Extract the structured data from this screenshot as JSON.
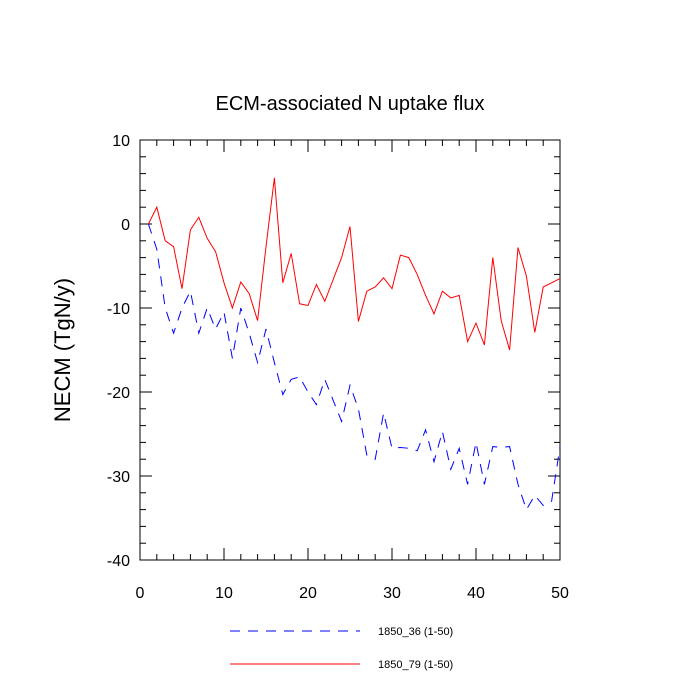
{
  "chart_data": {
    "type": "line",
    "title": "ECM-associated N uptake flux",
    "xlabel": "",
    "ylabel": "NECM  (TgN/y)",
    "xlim": [
      0,
      50
    ],
    "ylim": [
      -40,
      10
    ],
    "x_ticks": [
      0,
      10,
      20,
      30,
      40,
      50
    ],
    "y_ticks": [
      10,
      0,
      -10,
      -20,
      -30,
      -40
    ],
    "x_tick_labels": [
      "0",
      "10",
      "20",
      "30",
      "40",
      "50"
    ],
    "y_tick_labels": [
      "10",
      "0",
      "-10",
      "-20",
      "-30",
      "-40"
    ],
    "grid": false,
    "legend_position": "bottom",
    "x": [
      1,
      2,
      3,
      4,
      5,
      6,
      7,
      8,
      9,
      10,
      11,
      12,
      13,
      14,
      15,
      16,
      17,
      18,
      19,
      20,
      21,
      22,
      23,
      24,
      25,
      26,
      27,
      28,
      29,
      30,
      31,
      32,
      33,
      34,
      35,
      36,
      37,
      38,
      39,
      40,
      41,
      42,
      43,
      44,
      45,
      46,
      47,
      48,
      49,
      50
    ],
    "series": [
      {
        "name": "1850_36 (1-50)",
        "color": "#0000ff",
        "dash": "dashed",
        "values": [
          0,
          -3,
          -10,
          -13,
          -10,
          -8,
          -13,
          -10,
          -12.5,
          -10.5,
          -16,
          -10,
          -13,
          -16.5,
          -12.5,
          -16.5,
          -20.3,
          -18.5,
          -18.2,
          -20,
          -21.5,
          -18.5,
          -21,
          -23.5,
          -19.2,
          -22,
          -27.5,
          -28,
          -22.5,
          -26.7,
          -26.6,
          -26.7,
          -27,
          -24.5,
          -28.3,
          -24.7,
          -29.2,
          -26.7,
          -31,
          -26,
          -31,
          -26.5,
          -26.6,
          -26.5,
          -31,
          -34,
          -32.3,
          -33.5,
          -33,
          -26.5
        ]
      },
      {
        "name": "1850_79 (1-50)",
        "color": "#ff0000",
        "dash": "solid",
        "values": [
          0,
          2,
          -2,
          -2.7,
          -7.7,
          -0.7,
          0.8,
          -1.7,
          -3.3,
          -7,
          -10,
          -6.9,
          -8.3,
          -11.5,
          -2.7,
          5.5,
          -7,
          -3.5,
          -9.5,
          -9.7,
          -7.2,
          -9.2,
          -6.6,
          -4,
          -0.3,
          -11.6,
          -8,
          -7.5,
          -6.4,
          -7.7,
          -3.7,
          -4,
          -6,
          -8.5,
          -10.7,
          -8,
          -8.8,
          -8.5,
          -14,
          -11.8,
          -14.4,
          -4,
          -11.5,
          -15,
          -2.8,
          -6.2,
          -12.9,
          -7.5,
          -7,
          -6.5
        ]
      }
    ]
  }
}
